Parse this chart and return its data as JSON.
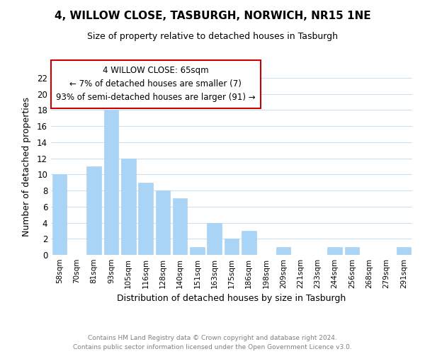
{
  "title": "4, WILLOW CLOSE, TASBURGH, NORWICH, NR15 1NE",
  "subtitle": "Size of property relative to detached houses in Tasburgh",
  "xlabel": "Distribution of detached houses by size in Tasburgh",
  "ylabel": "Number of detached properties",
  "categories": [
    "58sqm",
    "70sqm",
    "81sqm",
    "93sqm",
    "105sqm",
    "116sqm",
    "128sqm",
    "140sqm",
    "151sqm",
    "163sqm",
    "175sqm",
    "186sqm",
    "198sqm",
    "209sqm",
    "221sqm",
    "233sqm",
    "244sqm",
    "256sqm",
    "268sqm",
    "279sqm",
    "291sqm"
  ],
  "values": [
    10,
    0,
    11,
    18,
    12,
    9,
    8,
    7,
    1,
    4,
    2,
    3,
    0,
    1,
    0,
    0,
    1,
    1,
    0,
    0,
    1
  ],
  "bar_color": "#aad4f5",
  "bar_edge_color": "#aad4f5",
  "ylim": [
    0,
    22
  ],
  "yticks": [
    0,
    2,
    4,
    6,
    8,
    10,
    12,
    14,
    16,
    18,
    20,
    22
  ],
  "annotation_title": "4 WILLOW CLOSE: 65sqm",
  "annotation_line1": "← 7% of detached houses are smaller (7)",
  "annotation_line2": "93% of semi-detached houses are larger (91) →",
  "footer_line1": "Contains HM Land Registry data © Crown copyright and database right 2024.",
  "footer_line2": "Contains public sector information licensed under the Open Government Licence v3.0.",
  "background_color": "#ffffff",
  "grid_color": "#cce0f0",
  "annotation_box_color": "#cc0000",
  "title_fontsize": 11,
  "subtitle_fontsize": 9,
  "tick_fontsize": 7.5,
  "xlabel_fontsize": 9,
  "ylabel_fontsize": 9,
  "footer_fontsize": 6.5,
  "ann_fontsize": 8.5
}
